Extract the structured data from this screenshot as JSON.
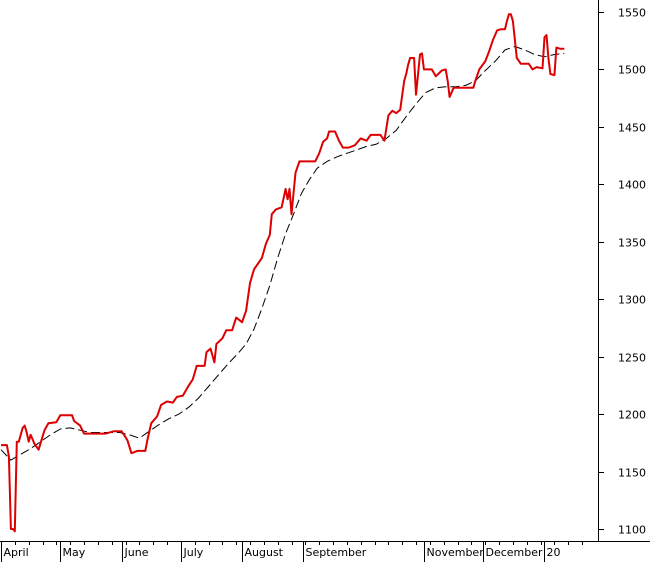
{
  "chart_data": {
    "type": "line",
    "title": "",
    "xlabel": "",
    "ylabel": "",
    "ylim": [
      1090,
      1560
    ],
    "xlim": [
      0,
      296
    ],
    "y_ticks": [
      1100,
      1150,
      1200,
      1250,
      1300,
      1350,
      1400,
      1450,
      1500,
      1550
    ],
    "x_ticks": [
      {
        "label": "April",
        "x": 0
      },
      {
        "label": "May",
        "x": 30
      },
      {
        "label": "June",
        "x": 61
      },
      {
        "label": "July",
        "x": 91
      },
      {
        "label": "August",
        "x": 122
      },
      {
        "label": "September",
        "x": 153
      },
      {
        "label": "November",
        "x": 214
      },
      {
        "label": "December",
        "x": 244
      },
      {
        "label": "20",
        "x": 275
      }
    ],
    "grid": false,
    "y_axis_side": "right",
    "colors": {
      "price": "#dd0000",
      "average": "#000000",
      "axis": "#000000",
      "background": "#ffffff"
    },
    "series": [
      {
        "key": "price",
        "style": "solid",
        "points": [
          [
            0,
            1173
          ],
          [
            3,
            1173
          ],
          [
            4,
            1163
          ],
          [
            5,
            1100
          ],
          [
            6,
            1100
          ],
          [
            7,
            1098
          ],
          [
            8,
            1176
          ],
          [
            9,
            1176
          ],
          [
            11,
            1188
          ],
          [
            12,
            1190
          ],
          [
            13,
            1184
          ],
          [
            14,
            1176
          ],
          [
            15,
            1182
          ],
          [
            16,
            1178
          ],
          [
            17,
            1174
          ],
          [
            19,
            1169
          ],
          [
            22,
            1186
          ],
          [
            24,
            1192
          ],
          [
            28,
            1193
          ],
          [
            30,
            1199
          ],
          [
            36,
            1199
          ],
          [
            37,
            1194
          ],
          [
            40,
            1190
          ],
          [
            42,
            1183
          ],
          [
            50,
            1183
          ],
          [
            53,
            1183
          ],
          [
            57,
            1185
          ],
          [
            61,
            1185
          ],
          [
            63,
            1180
          ],
          [
            64,
            1177
          ],
          [
            66,
            1166
          ],
          [
            69,
            1168
          ],
          [
            73,
            1168
          ],
          [
            74,
            1177
          ],
          [
            76,
            1192
          ],
          [
            79,
            1198
          ],
          [
            81,
            1208
          ],
          [
            84,
            1211
          ],
          [
            87,
            1210
          ],
          [
            89,
            1215
          ],
          [
            92,
            1216
          ],
          [
            95,
            1225
          ],
          [
            97,
            1230
          ],
          [
            99,
            1242
          ],
          [
            103,
            1242
          ],
          [
            104,
            1254
          ],
          [
            106,
            1257
          ],
          [
            108,
            1245
          ],
          [
            109,
            1261
          ],
          [
            112,
            1266
          ],
          [
            114,
            1273
          ],
          [
            117,
            1273
          ],
          [
            119,
            1284
          ],
          [
            122,
            1280
          ],
          [
            124,
            1290
          ],
          [
            126,
            1314
          ],
          [
            128,
            1326
          ],
          [
            132,
            1336
          ],
          [
            134,
            1348
          ],
          [
            136,
            1356
          ],
          [
            137,
            1374
          ],
          [
            139,
            1378
          ],
          [
            142,
            1380
          ],
          [
            144,
            1396
          ],
          [
            145,
            1387
          ],
          [
            146,
            1396
          ],
          [
            147,
            1374
          ],
          [
            149,
            1410
          ],
          [
            151,
            1420
          ],
          [
            159,
            1420
          ],
          [
            161,
            1427
          ],
          [
            163,
            1437
          ],
          [
            165,
            1440
          ],
          [
            166,
            1446
          ],
          [
            169,
            1446
          ],
          [
            171,
            1438
          ],
          [
            173,
            1432
          ],
          [
            176,
            1432
          ],
          [
            179,
            1434
          ],
          [
            182,
            1440
          ],
          [
            185,
            1438
          ],
          [
            187,
            1443
          ],
          [
            192,
            1443
          ],
          [
            194,
            1438
          ],
          [
            196,
            1460
          ],
          [
            198,
            1464
          ],
          [
            200,
            1462
          ],
          [
            202,
            1465
          ],
          [
            204,
            1490
          ],
          [
            205,
            1496
          ],
          [
            206,
            1504
          ],
          [
            207,
            1510
          ],
          [
            209,
            1510
          ],
          [
            210,
            1478
          ],
          [
            212,
            1513
          ],
          [
            213,
            1514
          ],
          [
            214,
            1500
          ],
          [
            218,
            1500
          ],
          [
            220,
            1494
          ],
          [
            223,
            1499
          ],
          [
            225,
            1500
          ],
          [
            226,
            1490
          ],
          [
            227,
            1476
          ],
          [
            229,
            1484
          ],
          [
            232,
            1484
          ],
          [
            236,
            1484
          ],
          [
            239,
            1484
          ],
          [
            240,
            1490
          ],
          [
            242,
            1500
          ],
          [
            245,
            1507
          ],
          [
            247,
            1516
          ],
          [
            249,
            1526
          ],
          [
            251,
            1534
          ],
          [
            253,
            1535
          ],
          [
            255,
            1535
          ],
          [
            256,
            1542
          ],
          [
            257,
            1548
          ],
          [
            258,
            1548
          ],
          [
            259,
            1542
          ],
          [
            261,
            1510
          ],
          [
            263,
            1505
          ],
          [
            267,
            1505
          ],
          [
            269,
            1500
          ],
          [
            271,
            1502
          ],
          [
            274,
            1501
          ],
          [
            275,
            1528
          ],
          [
            276,
            1530
          ],
          [
            277,
            1510
          ],
          [
            278,
            1496
          ],
          [
            280,
            1495
          ],
          [
            281,
            1519
          ],
          [
            283,
            1518
          ],
          [
            285,
            1518
          ]
        ]
      },
      {
        "key": "average",
        "style": "dashed",
        "points": [
          [
            0,
            1169
          ],
          [
            5,
            1160
          ],
          [
            10,
            1165
          ],
          [
            15,
            1170
          ],
          [
            20,
            1176
          ],
          [
            25,
            1182
          ],
          [
            30,
            1187
          ],
          [
            35,
            1188
          ],
          [
            40,
            1186
          ],
          [
            45,
            1184
          ],
          [
            50,
            1184
          ],
          [
            55,
            1184
          ],
          [
            60,
            1184
          ],
          [
            65,
            1182
          ],
          [
            70,
            1179
          ],
          [
            75,
            1185
          ],
          [
            80,
            1191
          ],
          [
            85,
            1196
          ],
          [
            90,
            1200
          ],
          [
            95,
            1206
          ],
          [
            100,
            1214
          ],
          [
            105,
            1224
          ],
          [
            110,
            1234
          ],
          [
            115,
            1244
          ],
          [
            120,
            1253
          ],
          [
            124,
            1261
          ],
          [
            128,
            1274
          ],
          [
            132,
            1292
          ],
          [
            136,
            1312
          ],
          [
            140,
            1336
          ],
          [
            144,
            1357
          ],
          [
            148,
            1374
          ],
          [
            152,
            1392
          ],
          [
            156,
            1404
          ],
          [
            160,
            1414
          ],
          [
            165,
            1420
          ],
          [
            170,
            1424
          ],
          [
            175,
            1427
          ],
          [
            180,
            1430
          ],
          [
            185,
            1433
          ],
          [
            190,
            1435
          ],
          [
            195,
            1440
          ],
          [
            200,
            1447
          ],
          [
            205,
            1459
          ],
          [
            210,
            1470
          ],
          [
            215,
            1480
          ],
          [
            220,
            1484
          ],
          [
            225,
            1485
          ],
          [
            230,
            1485
          ],
          [
            235,
            1486
          ],
          [
            240,
            1490
          ],
          [
            245,
            1499
          ],
          [
            250,
            1507
          ],
          [
            255,
            1517
          ],
          [
            260,
            1520
          ],
          [
            265,
            1517
          ],
          [
            270,
            1513
          ],
          [
            275,
            1511
          ],
          [
            280,
            1513
          ],
          [
            285,
            1514
          ]
        ]
      }
    ]
  }
}
